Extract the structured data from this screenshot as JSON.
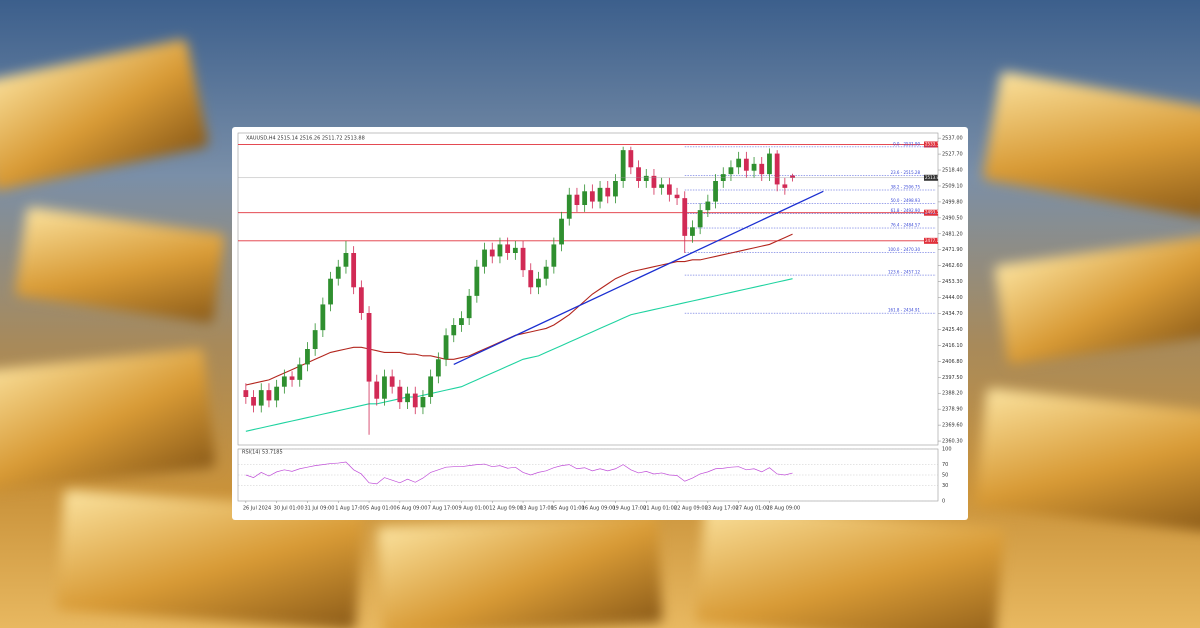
{
  "chart_data": {
    "type": "candlestick",
    "title": "XAUUSD,H4 2515.14 2516.26 2511.72 2513.88",
    "categories": [
      "26 Jul 2024",
      null,
      null,
      null,
      "30 Jul 01:00",
      null,
      null,
      null,
      "31 Jul 09:00",
      null,
      null,
      null,
      "1 Aug 17:00",
      null,
      null,
      null,
      "5 Aug 01:00",
      null,
      null,
      null,
      "6 Aug 09:00",
      null,
      null,
      null,
      "7 Aug 17:00",
      null,
      null,
      null,
      "9 Aug 01:00",
      null,
      null,
      null,
      "12 Aug 09:00",
      null,
      null,
      null,
      "13 Aug 17:00",
      null,
      null,
      null,
      "15 Aug 01:00",
      null,
      null,
      null,
      "16 Aug 09:00",
      null,
      null,
      null,
      "19 Aug 17:00",
      null,
      null,
      null,
      "21 Aug 01:00",
      null,
      null,
      null,
      "22 Aug 09:00",
      null,
      null,
      null,
      "23 Aug 17:00",
      null,
      null,
      null,
      "27 Aug 01:00",
      null,
      null,
      null,
      "28 Aug 09:00",
      null,
      null,
      null
    ],
    "open": [
      2390,
      2386,
      2381,
      2390,
      2384,
      2392,
      2398,
      2396,
      2405,
      2414,
      2425,
      2440,
      2455,
      2462,
      2470,
      2450,
      2435,
      2395,
      2385,
      2398,
      2392,
      2383,
      2388,
      2380,
      2386,
      2398,
      2408,
      2422,
      2428,
      2432,
      2445,
      2462,
      2472,
      2468,
      2475,
      2470,
      2473,
      2460,
      2450,
      2455,
      2462,
      2475,
      2490,
      2504,
      2498,
      2506,
      2500,
      2508,
      2503,
      2512,
      2530,
      2520,
      2512,
      2515,
      2508,
      2510,
      2504,
      2502,
      2480,
      2485,
      2495,
      2500,
      2512,
      2516,
      2520,
      2525,
      2518,
      2522,
      2516,
      2528,
      2510,
      2515.14
    ],
    "high": [
      2394,
      2390,
      2394,
      2394,
      2396,
      2402,
      2401,
      2409,
      2418,
      2429,
      2444,
      2459,
      2466,
      2477,
      2474,
      2454,
      2439,
      2399,
      2402,
      2402,
      2396,
      2392,
      2392,
      2390,
      2402,
      2412,
      2426,
      2432,
      2436,
      2449,
      2466,
      2476,
      2476,
      2479,
      2479,
      2477,
      2477,
      2464,
      2459,
      2466,
      2479,
      2494,
      2508,
      2508,
      2510,
      2510,
      2512,
      2512,
      2516,
      2532,
      2532,
      2524,
      2519,
      2519,
      2514,
      2514,
      2508,
      2506,
      2489,
      2499,
      2504,
      2516,
      2520,
      2524,
      2529,
      2529,
      2526,
      2526,
      2531,
      2530,
      2514,
      2516.26
    ],
    "low": [
      2382,
      2377,
      2377,
      2380,
      2380,
      2388,
      2392,
      2392,
      2401,
      2410,
      2421,
      2436,
      2451,
      2458,
      2446,
      2431,
      2364,
      2381,
      2381,
      2388,
      2379,
      2379,
      2376,
      2376,
      2382,
      2394,
      2404,
      2418,
      2424,
      2428,
      2441,
      2458,
      2464,
      2464,
      2466,
      2466,
      2456,
      2446,
      2446,
      2451,
      2458,
      2471,
      2486,
      2494,
      2494,
      2496,
      2496,
      2499,
      2499,
      2508,
      2516,
      2508,
      2508,
      2504,
      2504,
      2500,
      2498,
      2470,
      2476,
      2481,
      2491,
      2496,
      2508,
      2512,
      2516,
      2514,
      2514,
      2512,
      2512,
      2506,
      2504,
      2511.72
    ],
    "close": [
      2386,
      2381,
      2390,
      2384,
      2392,
      2398,
      2396,
      2405,
      2414,
      2425,
      2440,
      2455,
      2462,
      2470,
      2450,
      2435,
      2395,
      2385,
      2398,
      2392,
      2383,
      2388,
      2380,
      2386,
      2398,
      2408,
      2422,
      2428,
      2432,
      2445,
      2462,
      2472,
      2468,
      2475,
      2470,
      2473,
      2460,
      2450,
      2455,
      2462,
      2475,
      2490,
      2504,
      2498,
      2506,
      2500,
      2508,
      2503,
      2512,
      2530,
      2520,
      2512,
      2515,
      2508,
      2510,
      2504,
      2502,
      2480,
      2485,
      2495,
      2500,
      2512,
      2516,
      2520,
      2525,
      2518,
      2522,
      2516,
      2528,
      2510,
      2508,
      2513.88
    ],
    "up_color": "#2f8f2f",
    "down_color": "#d12a55",
    "series": [
      {
        "color": "#b3261e",
        "values": [
          2393,
          2394,
          2395,
          2396,
          2398,
          2400,
          2402,
          2404,
          2406,
          2408,
          2410,
          2412,
          2413,
          2414,
          2415,
          2415,
          2414,
          2413,
          2412,
          2412,
          2412,
          2411,
          2411,
          2410,
          2410,
          2409,
          2408,
          2408,
          2409,
          2410,
          2412,
          2414,
          2416,
          2418,
          2420,
          2422,
          2423,
          2424,
          2425,
          2426,
          2428,
          2431,
          2434,
          2438,
          2442,
          2446,
          2449,
          2452,
          2455,
          2457,
          2459,
          2460,
          2461,
          2462,
          2463,
          2464,
          2465,
          2465,
          2466,
          2466,
          2467,
          2468,
          2469,
          2470,
          2471,
          2472,
          2473,
          2474,
          2475,
          2477,
          2479,
          2481
        ]
      },
      {
        "color": "#1fd3a0",
        "values": [
          2366,
          2367,
          2368,
          2369,
          2370,
          2371,
          2372,
          2373,
          2374,
          2375,
          2376,
          2377,
          2378,
          2379,
          2380,
          2381,
          2382,
          2382,
          2383,
          2384,
          2385,
          2386,
          2386,
          2387,
          2388,
          2389,
          2390,
          2391,
          2392,
          2394,
          2396,
          2398,
          2400,
          2402,
          2404,
          2406,
          2408,
          2409,
          2410,
          2412,
          2414,
          2416,
          2418,
          2420,
          2422,
          2424,
          2426,
          2428,
          2430,
          2432,
          2434,
          2435,
          2436,
          2437,
          2438,
          2439,
          2440,
          2441,
          2442,
          2443,
          2444,
          2445,
          2446,
          2447,
          2448,
          2449,
          2450,
          2451,
          2452,
          2453,
          2454,
          2455
        ]
      }
    ],
    "trendline": {
      "color": "#1b2fd1",
      "x": [
        27,
        75
      ],
      "values": [
        2405,
        2506
      ]
    },
    "levels": [
      {
        "value": 2533.3,
        "label": "2533.30"
      },
      {
        "value": 2493.5,
        "label": "2493.50"
      },
      {
        "value": 2477.1,
        "label": "2477.10"
      }
    ],
    "level_color": "#e0303a",
    "fib": [
      {
        "value": 2531.9,
        "label": "0.0 - 2531.90"
      },
      {
        "value": 2515.28,
        "label": "23.6 - 2515.28"
      },
      {
        "value": 2506.75,
        "label": "38.2 - 2506.75"
      },
      {
        "value": 2498.93,
        "label": "50.0 - 2498.93"
      },
      {
        "value": 2492.9,
        "label": "61.8 - 2492.90"
      },
      {
        "value": 2484.57,
        "label": "76.4 - 2484.57"
      },
      {
        "value": 2470.3,
        "label": "100.0 - 2470.30"
      },
      {
        "value": 2457.12,
        "label": "123.6 - 2457.12"
      },
      {
        "value": 2434.91,
        "label": "161.8 - 2434.91"
      }
    ],
    "fib_color": "#3a49d6",
    "ylim": [
      2358,
      2540
    ],
    "yticks": [
      {
        "value": 2537.0,
        "label": "2537.00"
      },
      {
        "value": 2527.7,
        "label": "2527.70"
      },
      {
        "value": 2518.4,
        "label": "2518.40"
      },
      {
        "value": 2509.1,
        "label": "2509.10"
      },
      {
        "value": 2499.8,
        "label": "2499.80"
      },
      {
        "value": 2490.5,
        "label": "2490.50"
      },
      {
        "value": 2481.2,
        "label": "2481.20"
      },
      {
        "value": 2471.9,
        "label": "2471.90"
      },
      {
        "value": 2462.6,
        "label": "2462.60"
      },
      {
        "value": 2453.3,
        "label": "2453.30"
      },
      {
        "value": 2444.0,
        "label": "2444.00"
      },
      {
        "value": 2434.7,
        "label": "2434.70"
      },
      {
        "value": 2425.4,
        "label": "2425.40"
      },
      {
        "value": 2416.1,
        "label": "2416.10"
      },
      {
        "value": 2406.8,
        "label": "2406.80"
      },
      {
        "value": 2397.5,
        "label": "2397.50"
      },
      {
        "value": 2388.2,
        "label": "2388.20"
      },
      {
        "value": 2378.9,
        "label": "2378.90"
      },
      {
        "value": 2369.6,
        "label": "2369.60"
      },
      {
        "value": 2360.3,
        "label": "2360.30"
      }
    ],
    "rsi": {
      "label": "RSI(14) 53.7185",
      "color": "#c04fd8",
      "ylim": [
        0,
        100
      ],
      "yticks": [
        0,
        30,
        50,
        70,
        100
      ],
      "values": [
        50,
        45,
        55,
        48,
        56,
        60,
        57,
        62,
        65,
        68,
        70,
        72,
        73,
        75,
        60,
        52,
        35,
        33,
        45,
        40,
        35,
        42,
        36,
        44,
        55,
        60,
        65,
        66,
        66,
        68,
        70,
        71,
        66,
        68,
        63,
        65,
        55,
        50,
        55,
        58,
        64,
        68,
        70,
        62,
        64,
        58,
        62,
        58,
        62,
        70,
        60,
        54,
        57,
        52,
        54,
        50,
        49,
        38,
        44,
        52,
        56,
        62,
        63,
        65,
        66,
        60,
        62,
        56,
        64,
        52,
        50,
        53.7185
      ]
    }
  }
}
